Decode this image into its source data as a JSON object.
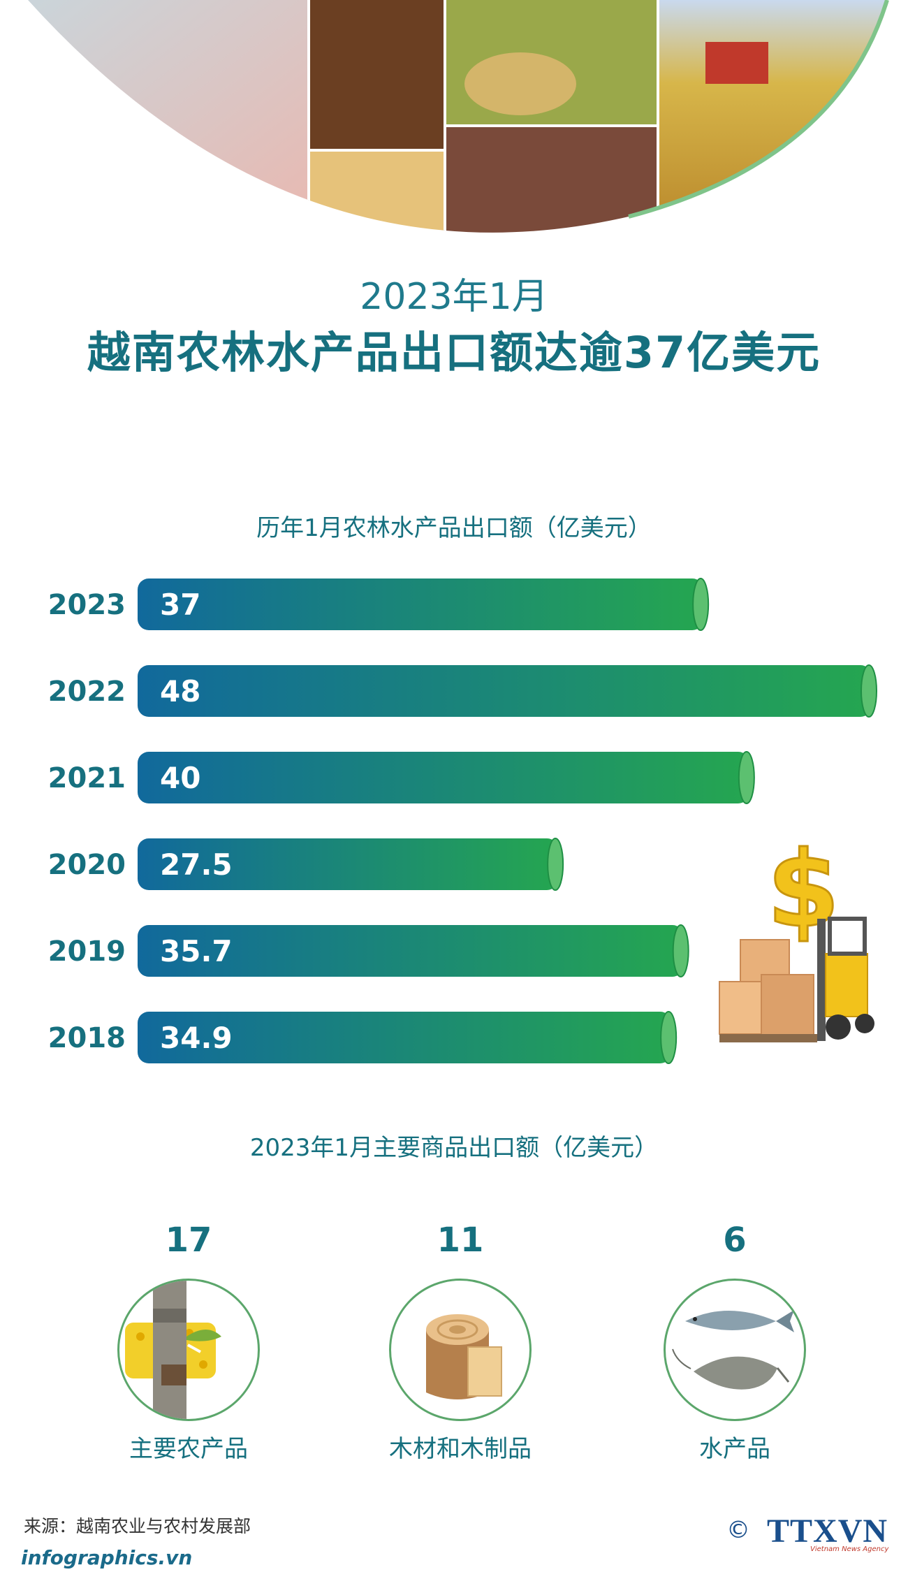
{
  "header": {
    "title_line1": "2023年1月",
    "title_line2": "越南农林水产品出口额达逾37亿美元"
  },
  "chart_data": [
    {
      "type": "bar",
      "orientation": "horizontal",
      "title": "历年1月农林水产品出口额（亿美元）",
      "categories": [
        "2023",
        "2022",
        "2021",
        "2020",
        "2019",
        "2018"
      ],
      "values": [
        37,
        48,
        40,
        27.5,
        35.7,
        34.9
      ],
      "value_labels": [
        "37",
        "48",
        "40",
        "27.5",
        "35.7",
        "34.9"
      ],
      "xlim": [
        0,
        48
      ],
      "grid": false,
      "colors": {
        "bar_start": "#11699c",
        "bar_end": "#25a650",
        "bar_cap": "#5cc070",
        "label": "#16707f"
      }
    },
    {
      "type": "table",
      "title": "2023年1月主要商品出口额（亿美元）",
      "categories": [
        "主要农产品",
        "木材和木制品",
        "水产品"
      ],
      "values": [
        17,
        11,
        6
      ],
      "value_labels": [
        "17",
        "11",
        "6"
      ],
      "icons": [
        "rubber-icon",
        "wood-log-icon",
        "fish-shrimp-icon"
      ]
    }
  ],
  "footer": {
    "source": "来源：越南农业与农村发展部",
    "site": "infographics.vn",
    "copyright_symbol": "©",
    "brand": "TTXVN",
    "brand_sub": "Vietnam News Agency"
  },
  "colors": {
    "primary_teal": "#16707f",
    "accent_green": "#5ba66b",
    "brand_blue": "#1a4f8c"
  }
}
